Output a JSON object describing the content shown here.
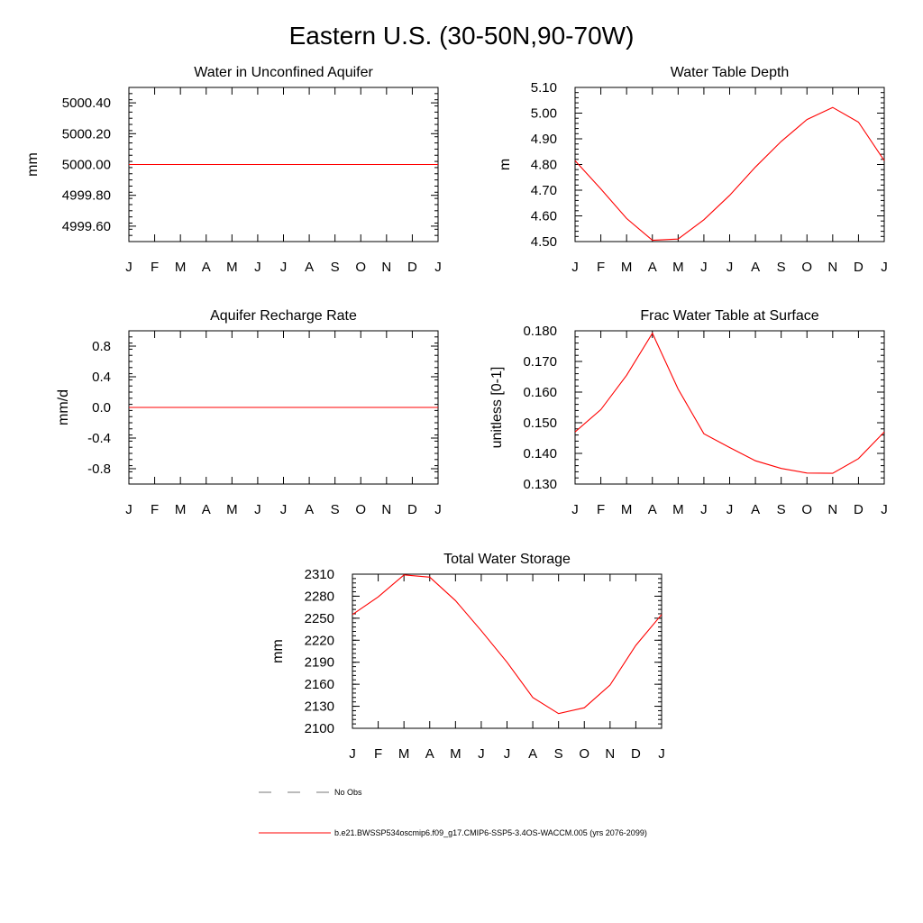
{
  "title": "Eastern U.S. (30-50N,90-70W)",
  "chart_data": [
    {
      "id": "aquifer",
      "type": "line",
      "title": "Water in Unconfined Aquifer",
      "ylabel": "mm",
      "categories": [
        "J",
        "F",
        "M",
        "A",
        "M",
        "J",
        "J",
        "A",
        "S",
        "O",
        "N",
        "D",
        "J"
      ],
      "ylim": [
        4999.5,
        5000.5
      ],
      "yticks": [
        "4999.60",
        "4999.80",
        "5000.00",
        "5000.20",
        "5000.40"
      ],
      "series": [
        {
          "name": "b.e21.BWSSP534oscmip6.f09_g17.CMIP6-SSP5-3.4OS-WACCM.005 (yrs 2076-2099)",
          "values": [
            5000,
            5000,
            5000,
            5000,
            5000,
            5000,
            5000,
            5000,
            5000,
            5000,
            5000,
            5000,
            5000
          ]
        }
      ]
    },
    {
      "id": "wtd",
      "type": "line",
      "title": "Water Table Depth",
      "ylabel": "m",
      "categories": [
        "J",
        "F",
        "M",
        "A",
        "M",
        "J",
        "J",
        "A",
        "S",
        "O",
        "N",
        "D",
        "J"
      ],
      "ylim": [
        4.5,
        5.1
      ],
      "yticks": [
        "4.50",
        "4.60",
        "4.70",
        "4.80",
        "4.90",
        "5.00",
        "5.10"
      ],
      "series": [
        {
          "name": "b.e21.BWSSP534oscmip6.f09_g17.CMIP6-SSP5-3.4OS-WACCM.005 (yrs 2076-2099)",
          "values": [
            4.815,
            4.705,
            4.59,
            4.505,
            4.51,
            4.585,
            4.68,
            4.79,
            4.89,
            4.975,
            5.022,
            4.965,
            4.815
          ]
        }
      ]
    },
    {
      "id": "recharge",
      "type": "line",
      "title": "Aquifer Recharge Rate",
      "ylabel": "mm/d",
      "categories": [
        "J",
        "F",
        "M",
        "A",
        "M",
        "J",
        "J",
        "A",
        "S",
        "O",
        "N",
        "D",
        "J"
      ],
      "ylim": [
        -1.0,
        1.0
      ],
      "yticks": [
        "-0.8",
        "-0.4",
        "0.0",
        "0.4",
        "0.8"
      ],
      "series": [
        {
          "name": "b.e21.BWSSP534oscmip6.f09_g17.CMIP6-SSP5-3.4OS-WACCM.005 (yrs 2076-2099)",
          "values": [
            0,
            0,
            0,
            0,
            0,
            0,
            0,
            0,
            0,
            0,
            0,
            0,
            0
          ]
        }
      ]
    },
    {
      "id": "fracwt",
      "type": "line",
      "title": "Frac Water Table at Surface",
      "ylabel": "unitless [0-1]",
      "categories": [
        "J",
        "F",
        "M",
        "A",
        "M",
        "J",
        "J",
        "A",
        "S",
        "O",
        "N",
        "D",
        "J"
      ],
      "ylim": [
        0.13,
        0.18
      ],
      "yticks": [
        "0.130",
        "0.140",
        "0.150",
        "0.160",
        "0.170",
        "0.180"
      ],
      "series": [
        {
          "name": "b.e21.BWSSP534oscmip6.f09_g17.CMIP6-SSP5-3.4OS-WACCM.005 (yrs 2076-2099)",
          "values": [
            0.147,
            0.1543,
            0.1655,
            0.1792,
            0.161,
            0.1464,
            0.1419,
            0.1376,
            0.1351,
            0.1336,
            0.1335,
            0.1383,
            0.147
          ]
        }
      ]
    },
    {
      "id": "tws",
      "type": "line",
      "title": "Total Water Storage",
      "ylabel": "mm",
      "categories": [
        "J",
        "F",
        "M",
        "A",
        "M",
        "J",
        "J",
        "A",
        "S",
        "O",
        "N",
        "D",
        "J"
      ],
      "ylim": [
        2100,
        2310
      ],
      "yticks": [
        "2100",
        "2130",
        "2160",
        "2190",
        "2220",
        "2250",
        "2280",
        "2310"
      ],
      "series": [
        {
          "name": "b.e21.BWSSP534oscmip6.f09_g17.CMIP6-SSP5-3.4OS-WACCM.005 (yrs 2076-2099)",
          "values": [
            2255,
            2279,
            2309,
            2306,
            2274,
            2233,
            2190,
            2142,
            2120,
            2128,
            2159,
            2213,
            2255
          ]
        }
      ]
    }
  ],
  "legend": {
    "obs_label": "No Obs",
    "model_label": "b.e21.BWSSP534oscmip6.f09_g17.CMIP6-SSP5-3.4OS-WACCM.005 (yrs 2076-2099)"
  },
  "colors": {
    "series": "#ff0000",
    "obs": "#777777",
    "axis": "#000000"
  }
}
